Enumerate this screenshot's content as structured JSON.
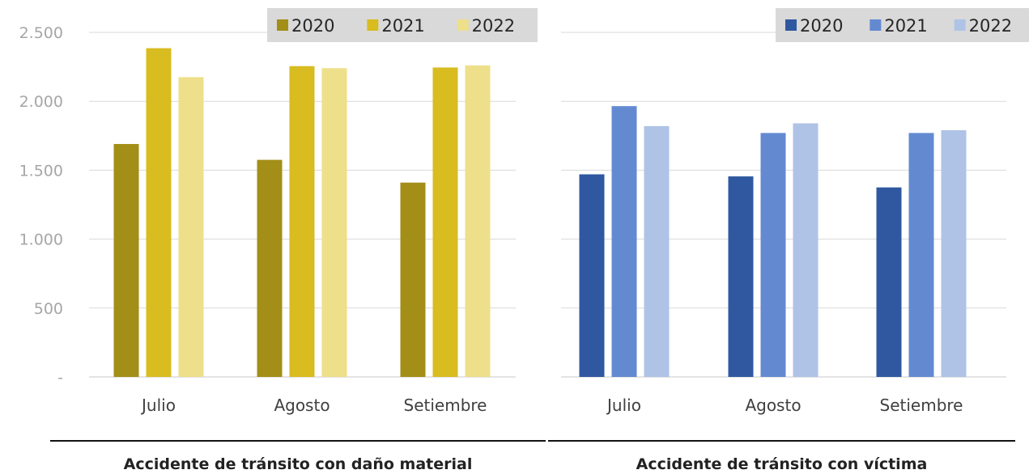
{
  "chart_data": [
    {
      "type": "bar",
      "title": "Accidente de tránsito con daño material",
      "categories": [
        "Julio",
        "Agosto",
        "Setiembre"
      ],
      "ylim": [
        0,
        2500
      ],
      "yticks": [
        0,
        500,
        1000,
        1500,
        2000,
        2500
      ],
      "ytick_labels": [
        "-",
        "500",
        "1.000",
        "1.500",
        "2.000",
        "2.500"
      ],
      "grid": true,
      "legend_position": "top-right",
      "series": [
        {
          "name": "2020",
          "color": "#A38E18",
          "values": [
            1690,
            1575,
            1410
          ]
        },
        {
          "name": "2021",
          "color": "#D8BC20",
          "values": [
            2385,
            2255,
            2245
          ]
        },
        {
          "name": "2022",
          "color": "#EEDF8A",
          "values": [
            2175,
            2240,
            2260
          ]
        }
      ]
    },
    {
      "type": "bar",
      "title": "Accidente de tránsito con víctima",
      "categories": [
        "Julio",
        "Agosto",
        "Setiembre"
      ],
      "ylim": [
        0,
        2500
      ],
      "grid": true,
      "legend_position": "top-right",
      "series": [
        {
          "name": "2020",
          "color": "#2F58A0",
          "values": [
            1470,
            1455,
            1375
          ]
        },
        {
          "name": "2021",
          "color": "#638AD1",
          "values": [
            1965,
            1770,
            1770
          ]
        },
        {
          "name": "2022",
          "color": "#AFC3E6",
          "values": [
            1820,
            1840,
            1790
          ]
        }
      ]
    }
  ]
}
